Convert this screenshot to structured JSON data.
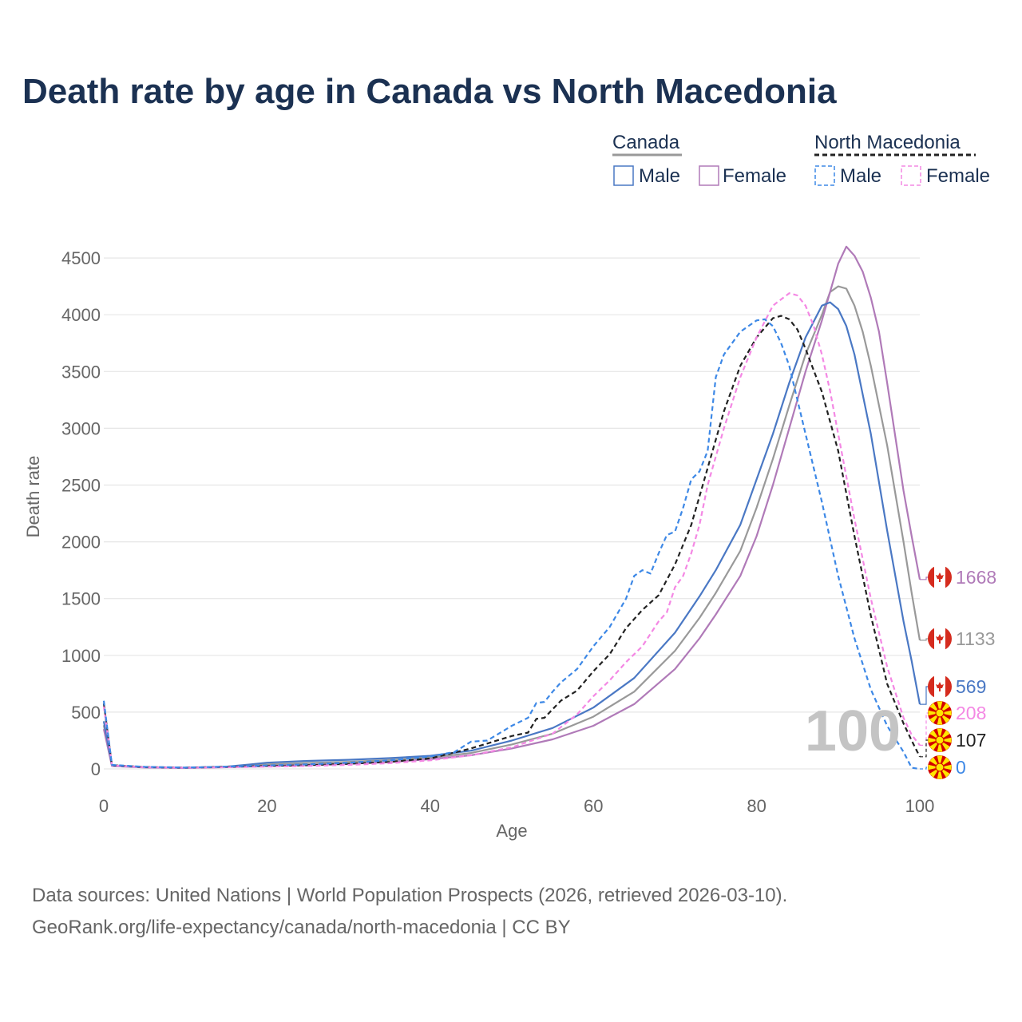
{
  "chart_data": {
    "type": "line",
    "title": "Death rate by age in Canada vs North Macedonia",
    "xlabel": "Age",
    "ylabel": "Death rate",
    "xlim": [
      0,
      100
    ],
    "ylim": [
      0,
      4600
    ],
    "x_ticks": [
      0,
      20,
      40,
      60,
      80,
      100
    ],
    "y_ticks": [
      0,
      500,
      1000,
      1500,
      2000,
      2500,
      3000,
      3500,
      4000,
      4500
    ],
    "grid": true,
    "legend_position": "top-right",
    "legend": {
      "groups": [
        {
          "country": "Canada",
          "series": [
            "Male",
            "Female"
          ]
        },
        {
          "country": "North Macedonia",
          "series": [
            "Male",
            "Female"
          ]
        }
      ]
    },
    "watermark_label": "100",
    "series": [
      {
        "name": "Canada Male",
        "country": "Canada",
        "sex": "Male",
        "style": "solid",
        "color": "#4a78c4",
        "end_label": "569",
        "points": [
          [
            0,
            420
          ],
          [
            1,
            30
          ],
          [
            5,
            15
          ],
          [
            10,
            10
          ],
          [
            15,
            20
          ],
          [
            18,
            40
          ],
          [
            20,
            55
          ],
          [
            25,
            70
          ],
          [
            30,
            80
          ],
          [
            35,
            95
          ],
          [
            40,
            115
          ],
          [
            45,
            160
          ],
          [
            50,
            250
          ],
          [
            55,
            360
          ],
          [
            60,
            540
          ],
          [
            65,
            800
          ],
          [
            70,
            1200
          ],
          [
            73,
            1520
          ],
          [
            75,
            1750
          ],
          [
            78,
            2150
          ],
          [
            80,
            2550
          ],
          [
            82,
            2950
          ],
          [
            84,
            3400
          ],
          [
            86,
            3800
          ],
          [
            88,
            4080
          ],
          [
            89,
            4110
          ],
          [
            90,
            4050
          ],
          [
            91,
            3900
          ],
          [
            92,
            3650
          ],
          [
            94,
            2950
          ],
          [
            96,
            2100
          ],
          [
            98,
            1300
          ],
          [
            99,
            950
          ],
          [
            100,
            569
          ]
        ]
      },
      {
        "name": "Canada Female",
        "country": "Canada",
        "sex": "Female",
        "style": "solid",
        "color": "#b07ab8",
        "end_label": "1668",
        "points": [
          [
            0,
            350
          ],
          [
            1,
            25
          ],
          [
            5,
            12
          ],
          [
            10,
            8
          ],
          [
            15,
            15
          ],
          [
            20,
            25
          ],
          [
            25,
            35
          ],
          [
            30,
            45
          ],
          [
            35,
            60
          ],
          [
            40,
            85
          ],
          [
            45,
            120
          ],
          [
            50,
            180
          ],
          [
            55,
            260
          ],
          [
            60,
            380
          ],
          [
            65,
            570
          ],
          [
            70,
            880
          ],
          [
            73,
            1150
          ],
          [
            75,
            1360
          ],
          [
            78,
            1700
          ],
          [
            80,
            2050
          ],
          [
            82,
            2500
          ],
          [
            84,
            3000
          ],
          [
            86,
            3500
          ],
          [
            88,
            3950
          ],
          [
            89,
            4200
          ],
          [
            90,
            4450
          ],
          [
            91,
            4600
          ],
          [
            92,
            4520
          ],
          [
            93,
            4380
          ],
          [
            94,
            4150
          ],
          [
            95,
            3850
          ],
          [
            96,
            3400
          ],
          [
            98,
            2450
          ],
          [
            99,
            2050
          ],
          [
            100,
            1668
          ]
        ]
      },
      {
        "name": "Canada Both",
        "country": "Canada",
        "sex": "Both",
        "style": "solid",
        "color": "#999999",
        "end_label": "1133",
        "points": [
          [
            0,
            385
          ],
          [
            1,
            28
          ],
          [
            5,
            14
          ],
          [
            10,
            9
          ],
          [
            15,
            18
          ],
          [
            20,
            40
          ],
          [
            25,
            52
          ],
          [
            30,
            62
          ],
          [
            35,
            78
          ],
          [
            40,
            100
          ],
          [
            45,
            140
          ],
          [
            50,
            215
          ],
          [
            55,
            310
          ],
          [
            60,
            460
          ],
          [
            65,
            680
          ],
          [
            70,
            1040
          ],
          [
            73,
            1330
          ],
          [
            75,
            1550
          ],
          [
            78,
            1920
          ],
          [
            80,
            2300
          ],
          [
            82,
            2730
          ],
          [
            84,
            3200
          ],
          [
            86,
            3650
          ],
          [
            88,
            4000
          ],
          [
            89,
            4200
          ],
          [
            90,
            4250
          ],
          [
            91,
            4230
          ],
          [
            92,
            4080
          ],
          [
            93,
            3850
          ],
          [
            94,
            3550
          ],
          [
            96,
            2850
          ],
          [
            98,
            2000
          ],
          [
            99,
            1550
          ],
          [
            100,
            1133
          ]
        ]
      },
      {
        "name": "North Macedonia Male",
        "country": "North Macedonia",
        "sex": "Male",
        "style": "dashed",
        "color": "#3d88e6",
        "end_label": "0",
        "points": [
          [
            0,
            600
          ],
          [
            1,
            35
          ],
          [
            5,
            18
          ],
          [
            10,
            12
          ],
          [
            15,
            20
          ],
          [
            20,
            30
          ],
          [
            25,
            40
          ],
          [
            30,
            55
          ],
          [
            35,
            75
          ],
          [
            40,
            110
          ],
          [
            43,
            150
          ],
          [
            45,
            240
          ],
          [
            47,
            250
          ],
          [
            50,
            380
          ],
          [
            52,
            450
          ],
          [
            53,
            580
          ],
          [
            54,
            590
          ],
          [
            55,
            680
          ],
          [
            56,
            760
          ],
          [
            58,
            880
          ],
          [
            60,
            1080
          ],
          [
            62,
            1250
          ],
          [
            64,
            1500
          ],
          [
            65,
            1700
          ],
          [
            66,
            1750
          ],
          [
            67,
            1720
          ],
          [
            68,
            1900
          ],
          [
            69,
            2060
          ],
          [
            70,
            2090
          ],
          [
            71,
            2300
          ],
          [
            72,
            2550
          ],
          [
            73,
            2620
          ],
          [
            74,
            2800
          ],
          [
            75,
            3450
          ],
          [
            76,
            3650
          ],
          [
            78,
            3850
          ],
          [
            80,
            3950
          ],
          [
            81,
            3960
          ],
          [
            82,
            3900
          ],
          [
            83,
            3750
          ],
          [
            84,
            3550
          ],
          [
            85,
            3250
          ],
          [
            86,
            2950
          ],
          [
            88,
            2350
          ],
          [
            90,
            1700
          ],
          [
            92,
            1150
          ],
          [
            94,
            700
          ],
          [
            96,
            380
          ],
          [
            98,
            150
          ],
          [
            99,
            10
          ],
          [
            100,
            0
          ]
        ]
      },
      {
        "name": "North Macedonia Female",
        "country": "North Macedonia",
        "sex": "Female",
        "style": "dashed",
        "color": "#f488e4",
        "end_label": "208",
        "points": [
          [
            0,
            550
          ],
          [
            1,
            30
          ],
          [
            5,
            14
          ],
          [
            10,
            10
          ],
          [
            15,
            15
          ],
          [
            20,
            20
          ],
          [
            25,
            25
          ],
          [
            30,
            35
          ],
          [
            35,
            50
          ],
          [
            40,
            75
          ],
          [
            45,
            120
          ],
          [
            50,
            190
          ],
          [
            55,
            310
          ],
          [
            58,
            480
          ],
          [
            60,
            640
          ],
          [
            62,
            780
          ],
          [
            64,
            940
          ],
          [
            66,
            1080
          ],
          [
            68,
            1300
          ],
          [
            69,
            1380
          ],
          [
            70,
            1600
          ],
          [
            71,
            1700
          ],
          [
            72,
            1900
          ],
          [
            73,
            2150
          ],
          [
            74,
            2500
          ],
          [
            76,
            3000
          ],
          [
            78,
            3450
          ],
          [
            80,
            3800
          ],
          [
            82,
            4080
          ],
          [
            84,
            4190
          ],
          [
            85,
            4170
          ],
          [
            86,
            4080
          ],
          [
            87,
            3900
          ],
          [
            88,
            3650
          ],
          [
            89,
            3330
          ],
          [
            90,
            2950
          ],
          [
            92,
            2200
          ],
          [
            94,
            1500
          ],
          [
            96,
            900
          ],
          [
            98,
            450
          ],
          [
            99,
            300
          ],
          [
            100,
            208
          ]
        ]
      },
      {
        "name": "North Macedonia Both",
        "country": "North Macedonia",
        "sex": "Both",
        "style": "dashed",
        "color": "#222222",
        "end_label": "107",
        "points": [
          [
            0,
            575
          ],
          [
            1,
            32
          ],
          [
            5,
            16
          ],
          [
            10,
            11
          ],
          [
            15,
            18
          ],
          [
            20,
            25
          ],
          [
            25,
            32
          ],
          [
            30,
            45
          ],
          [
            35,
            62
          ],
          [
            40,
            92
          ],
          [
            45,
            180
          ],
          [
            50,
            290
          ],
          [
            52,
            320
          ],
          [
            53,
            440
          ],
          [
            54,
            450
          ],
          [
            56,
            600
          ],
          [
            58,
            690
          ],
          [
            60,
            860
          ],
          [
            62,
            1010
          ],
          [
            64,
            1240
          ],
          [
            66,
            1400
          ],
          [
            68,
            1530
          ],
          [
            70,
            1800
          ],
          [
            72,
            2150
          ],
          [
            74,
            2650
          ],
          [
            76,
            3150
          ],
          [
            78,
            3550
          ],
          [
            80,
            3800
          ],
          [
            82,
            3970
          ],
          [
            83,
            3990
          ],
          [
            84,
            3960
          ],
          [
            85,
            3870
          ],
          [
            86,
            3700
          ],
          [
            88,
            3320
          ],
          [
            90,
            2800
          ],
          [
            92,
            2050
          ],
          [
            94,
            1350
          ],
          [
            96,
            750
          ],
          [
            98,
            400
          ],
          [
            99,
            250
          ],
          [
            100,
            107
          ]
        ]
      }
    ]
  },
  "source_line_1": "Data sources: United Nations | World Population Prospects (2026, retrieved 2026-03-10).",
  "source_line_2": "GeoRank.org/life-expectancy/canada/north-macedonia | CC BY"
}
